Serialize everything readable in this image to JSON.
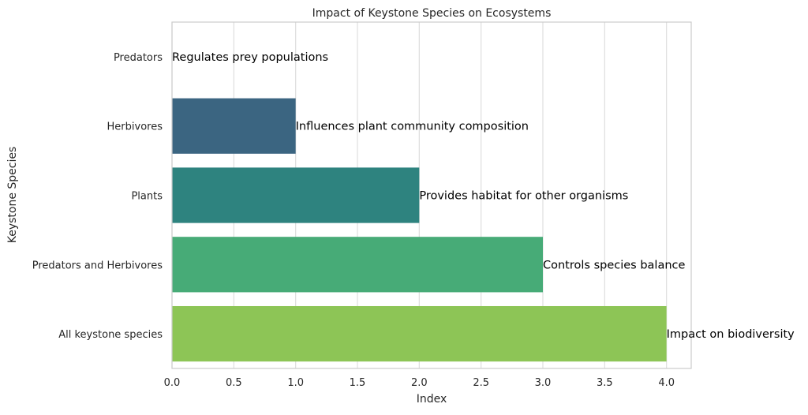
{
  "chart_data": {
    "type": "bar",
    "orientation": "horizontal",
    "title": "Impact of Keystone Species on Ecosystems",
    "xlabel": "Index",
    "ylabel": "Keystone Species",
    "xlim": [
      0,
      4.2
    ],
    "xticks": [
      "0.0",
      "0.5",
      "1.0",
      "1.5",
      "2.0",
      "2.5",
      "3.0",
      "3.5",
      "4.0"
    ],
    "grid": true,
    "categories": [
      "Predators",
      "Herbivores",
      "Plants",
      "Predators and Herbivores",
      "All keystone species"
    ],
    "values": [
      0,
      1,
      2,
      3,
      4
    ],
    "annotations": [
      "Regulates prey populations",
      "Influences plant community composition",
      "Provides habitat for other organisms",
      "Controls species balance",
      "Impact on biodiversity"
    ],
    "colors": [
      "#440154",
      "#3b6581",
      "#2e837f",
      "#47ab77",
      "#8dc556"
    ]
  }
}
